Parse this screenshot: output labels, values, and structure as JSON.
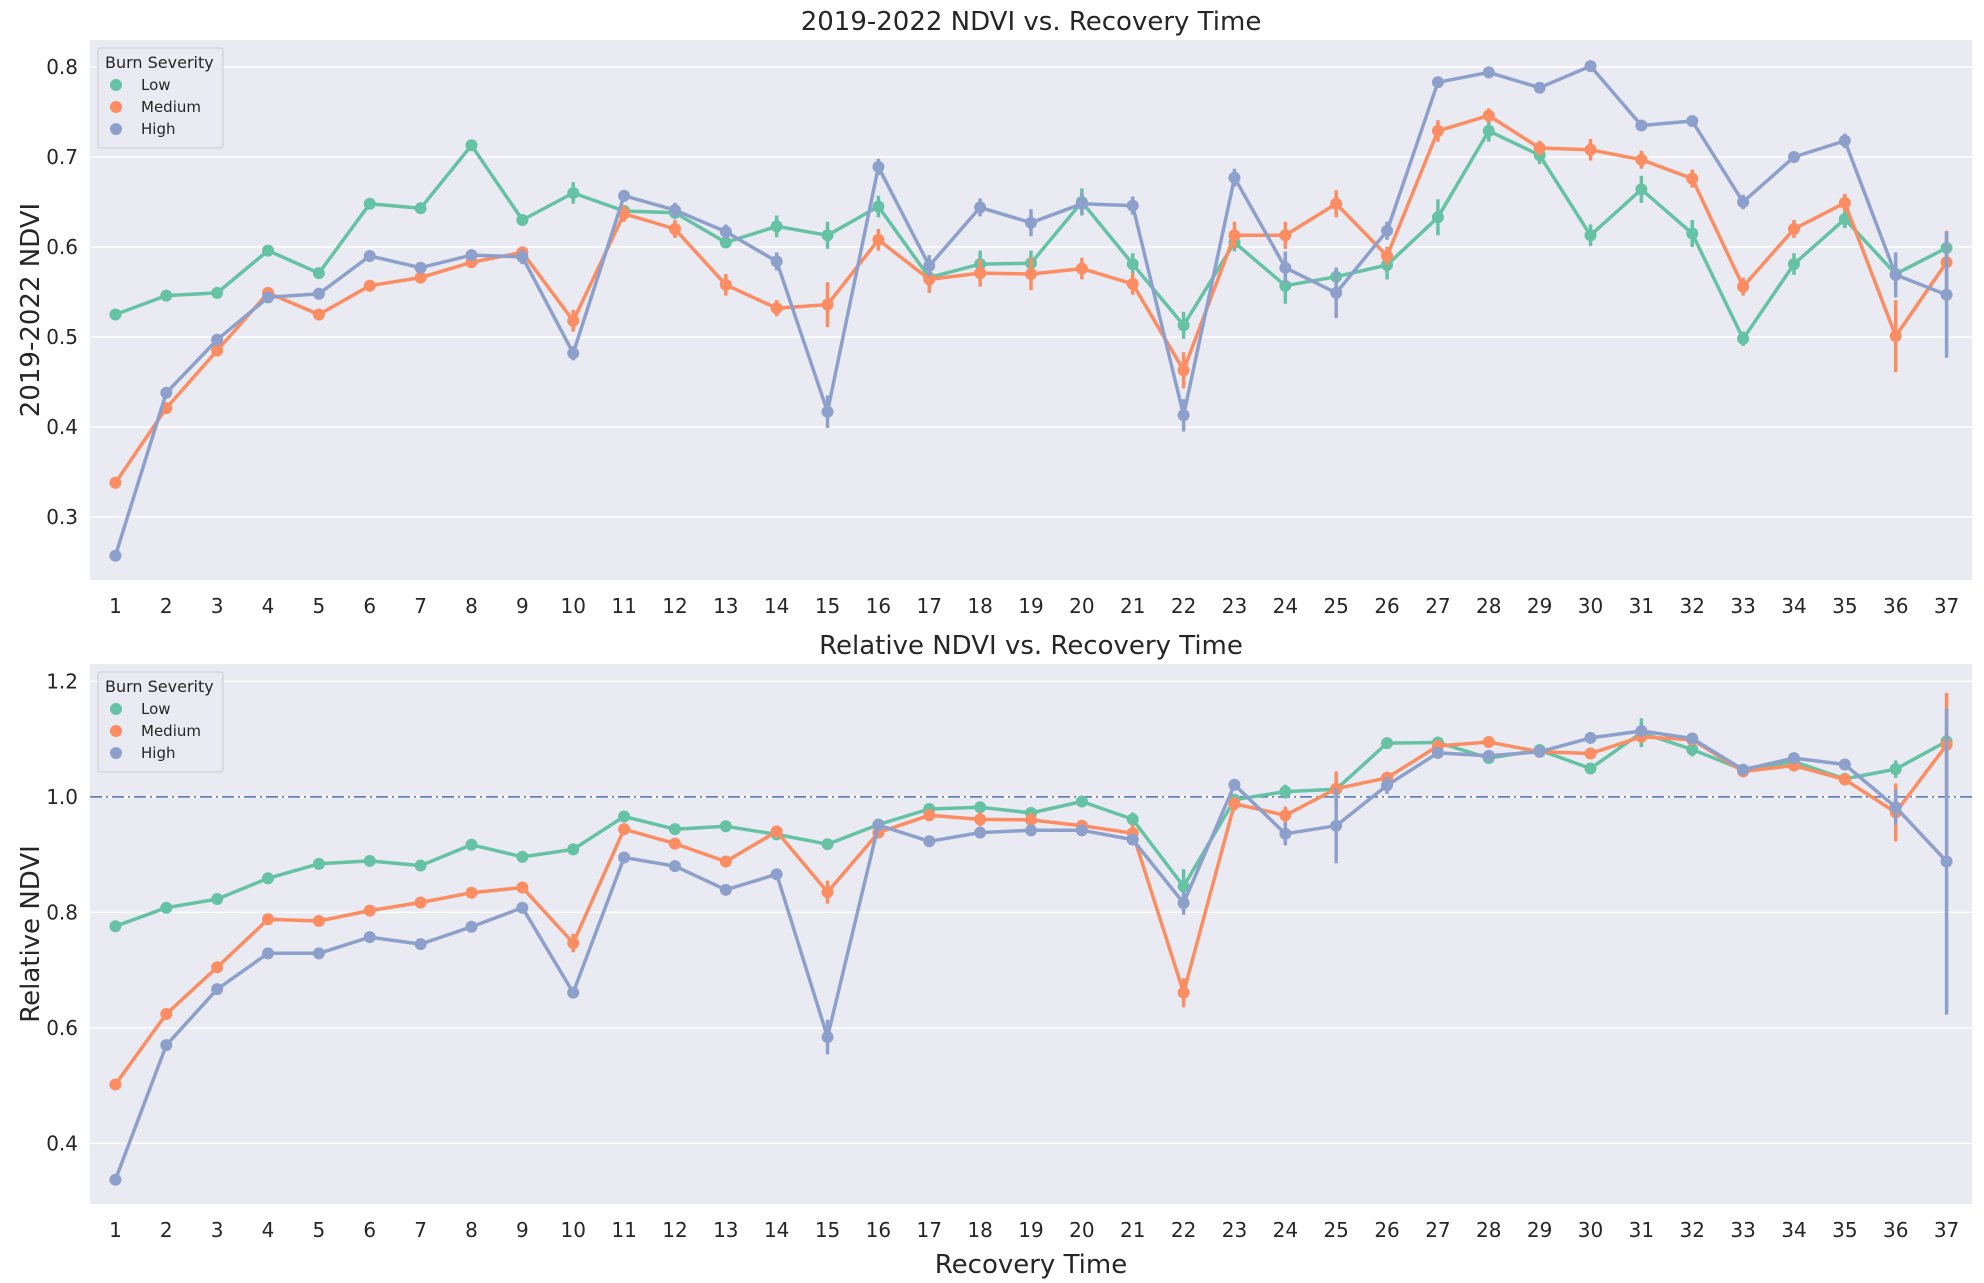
{
  "colors": {
    "Low": "#66c2a5",
    "Medium": "#fc8d62",
    "High": "#8da0cb",
    "refline": "#4c72b0"
  },
  "chart_data": [
    {
      "type": "line",
      "title": "2019-2022 NDVI vs. Recovery Time",
      "xlabel": "",
      "ylabel": "2019-2022 NDVI",
      "ylim": [
        0.23,
        0.83
      ],
      "yticks": [
        "0.3",
        "0.4",
        "0.5",
        "0.6",
        "0.7",
        "0.8"
      ],
      "legend": {
        "title": "Burn Severity",
        "position": "top-left"
      },
      "categories": [
        "1",
        "2",
        "3",
        "4",
        "5",
        "6",
        "7",
        "8",
        "9",
        "10",
        "11",
        "12",
        "13",
        "14",
        "15",
        "16",
        "17",
        "18",
        "19",
        "20",
        "21",
        "22",
        "23",
        "24",
        "25",
        "26",
        "27",
        "28",
        "29",
        "30",
        "31",
        "32",
        "33",
        "34",
        "35",
        "36",
        "37"
      ],
      "series": [
        {
          "name": "Low",
          "values": [
            0.525,
            0.546,
            0.549,
            0.596,
            0.571,
            0.648,
            0.643,
            0.713,
            0.63,
            0.66,
            0.64,
            0.638,
            0.605,
            0.623,
            0.613,
            0.645,
            0.566,
            0.581,
            0.582,
            0.65,
            0.581,
            0.513,
            0.605,
            0.557,
            0.567,
            0.58,
            0.633,
            0.729,
            0.702,
            0.613,
            0.664,
            0.615,
            0.498,
            0.581,
            0.631,
            0.57,
            0.599
          ],
          "err": [
            0.003,
            0.003,
            0.003,
            0.004,
            0.004,
            0.004,
            0.004,
            0.005,
            0.004,
            0.012,
            0.006,
            0.007,
            0.006,
            0.012,
            0.015,
            0.012,
            0.01,
            0.015,
            0.014,
            0.015,
            0.012,
            0.015,
            0.01,
            0.02,
            0.01,
            0.016,
            0.02,
            0.012,
            0.01,
            0.012,
            0.015,
            0.015,
            0.008,
            0.012,
            0.01,
            0.012,
            0.012
          ]
        },
        {
          "name": "Medium",
          "values": [
            0.338,
            0.421,
            0.485,
            0.549,
            0.525,
            0.557,
            0.566,
            0.583,
            0.594,
            0.518,
            0.637,
            0.62,
            0.558,
            0.532,
            0.536,
            0.608,
            0.564,
            0.571,
            0.57,
            0.576,
            0.559,
            0.463,
            0.613,
            0.613,
            0.648,
            0.59,
            0.729,
            0.746,
            0.71,
            0.708,
            0.697,
            0.676,
            0.556,
            0.62,
            0.649,
            0.501,
            0.583
          ],
          "err": [
            0.003,
            0.004,
            0.004,
            0.005,
            0.005,
            0.005,
            0.005,
            0.005,
            0.006,
            0.012,
            0.009,
            0.01,
            0.012,
            0.009,
            0.025,
            0.012,
            0.015,
            0.015,
            0.018,
            0.012,
            0.012,
            0.02,
            0.015,
            0.015,
            0.015,
            0.01,
            0.012,
            0.008,
            0.008,
            0.012,
            0.01,
            0.01,
            0.01,
            0.01,
            0.01,
            0.04,
            0.035
          ]
        },
        {
          "name": "High",
          "values": [
            0.257,
            0.438,
            0.497,
            0.544,
            0.548,
            0.59,
            0.577,
            0.591,
            0.589,
            0.482,
            0.657,
            0.641,
            0.617,
            0.584,
            0.417,
            0.689,
            0.579,
            0.644,
            0.627,
            0.648,
            0.646,
            0.413,
            0.677,
            0.577,
            0.549,
            0.618,
            0.783,
            0.794,
            0.777,
            0.801,
            0.735,
            0.74,
            0.65,
            0.7,
            0.718,
            0.569,
            0.547
          ],
          "err": [
            0.003,
            0.004,
            0.004,
            0.004,
            0.004,
            0.004,
            0.004,
            0.004,
            0.008,
            0.008,
            0.006,
            0.008,
            0.008,
            0.01,
            0.018,
            0.009,
            0.012,
            0.01,
            0.015,
            0.012,
            0.01,
            0.018,
            0.01,
            0.018,
            0.028,
            0.01,
            0.005,
            0.005,
            0.005,
            0.005,
            0.006,
            0.005,
            0.008,
            0.005,
            0.008,
            0.025,
            0.07
          ]
        }
      ]
    },
    {
      "type": "line",
      "title": "Relative NDVI vs. Recovery Time",
      "xlabel": "Recovery Time",
      "ylabel": "Relative NDVI",
      "ylim": [
        0.295,
        1.23
      ],
      "yticks": [
        "0.4",
        "0.6",
        "0.8",
        "1.0",
        "1.2"
      ],
      "reference_line": 1.0,
      "legend": {
        "title": "Burn Severity",
        "position": "top-left"
      },
      "categories": [
        "1",
        "2",
        "3",
        "4",
        "5",
        "6",
        "7",
        "8",
        "9",
        "10",
        "11",
        "12",
        "13",
        "14",
        "15",
        "16",
        "17",
        "18",
        "19",
        "20",
        "21",
        "22",
        "23",
        "24",
        "25",
        "26",
        "27",
        "28",
        "29",
        "30",
        "31",
        "32",
        "33",
        "34",
        "35",
        "36",
        "37"
      ],
      "series": [
        {
          "name": "Low",
          "values": [
            0.776,
            0.808,
            0.823,
            0.859,
            0.884,
            0.889,
            0.881,
            0.917,
            0.896,
            0.909,
            0.966,
            0.944,
            0.949,
            0.935,
            0.918,
            0.952,
            0.979,
            0.982,
            0.972,
            0.992,
            0.961,
            0.845,
            0.995,
            1.009,
            1.013,
            1.093,
            1.094,
            1.067,
            1.081,
            1.049,
            1.111,
            1.082,
            1.047,
            1.061,
            1.031,
            1.048,
            1.096
          ],
          "err": [
            0.003,
            0.004,
            0.004,
            0.004,
            0.004,
            0.004,
            0.004,
            0.005,
            0.006,
            0.006,
            0.006,
            0.006,
            0.006,
            0.006,
            0.008,
            0.008,
            0.008,
            0.008,
            0.01,
            0.008,
            0.012,
            0.03,
            0.01,
            0.012,
            0.012,
            0.008,
            0.008,
            0.008,
            0.008,
            0.008,
            0.025,
            0.012,
            0.008,
            0.008,
            0.008,
            0.015,
            0.015
          ]
        },
        {
          "name": "Medium",
          "values": [
            0.502,
            0.624,
            0.705,
            0.788,
            0.785,
            0.803,
            0.817,
            0.834,
            0.843,
            0.747,
            0.944,
            0.919,
            0.888,
            0.94,
            0.835,
            0.938,
            0.968,
            0.961,
            0.96,
            0.95,
            0.937,
            0.661,
            0.988,
            0.968,
            1.014,
            1.033,
            1.088,
            1.095,
            1.078,
            1.075,
            1.104,
            1.099,
            1.044,
            1.054,
            1.03,
            0.973,
            1.09
          ],
          "err": [
            0.003,
            0.004,
            0.004,
            0.005,
            0.005,
            0.005,
            0.005,
            0.006,
            0.007,
            0.016,
            0.008,
            0.008,
            0.01,
            0.01,
            0.02,
            0.01,
            0.01,
            0.012,
            0.012,
            0.01,
            0.015,
            0.025,
            0.012,
            0.015,
            0.03,
            0.01,
            0.01,
            0.008,
            0.008,
            0.01,
            0.01,
            0.01,
            0.01,
            0.008,
            0.01,
            0.05,
            0.09
          ]
        },
        {
          "name": "High",
          "values": [
            0.337,
            0.57,
            0.667,
            0.729,
            0.729,
            0.757,
            0.745,
            0.775,
            0.808,
            0.661,
            0.895,
            0.88,
            0.839,
            0.866,
            0.584,
            0.951,
            0.923,
            0.938,
            0.942,
            0.942,
            0.926,
            0.816,
            1.021,
            0.936,
            0.95,
            1.02,
            1.076,
            1.071,
            1.078,
            1.102,
            1.114,
            1.101,
            1.047,
            1.067,
            1.056,
            0.982,
            0.888
          ],
          "err": [
            0.003,
            0.004,
            0.004,
            0.004,
            0.004,
            0.004,
            0.004,
            0.004,
            0.008,
            0.01,
            0.006,
            0.006,
            0.006,
            0.008,
            0.03,
            0.008,
            0.008,
            0.008,
            0.008,
            0.008,
            0.008,
            0.02,
            0.01,
            0.02,
            0.065,
            0.015,
            0.01,
            0.008,
            0.008,
            0.008,
            0.01,
            0.008,
            0.008,
            0.008,
            0.008,
            0.03,
            0.265
          ]
        }
      ]
    }
  ]
}
